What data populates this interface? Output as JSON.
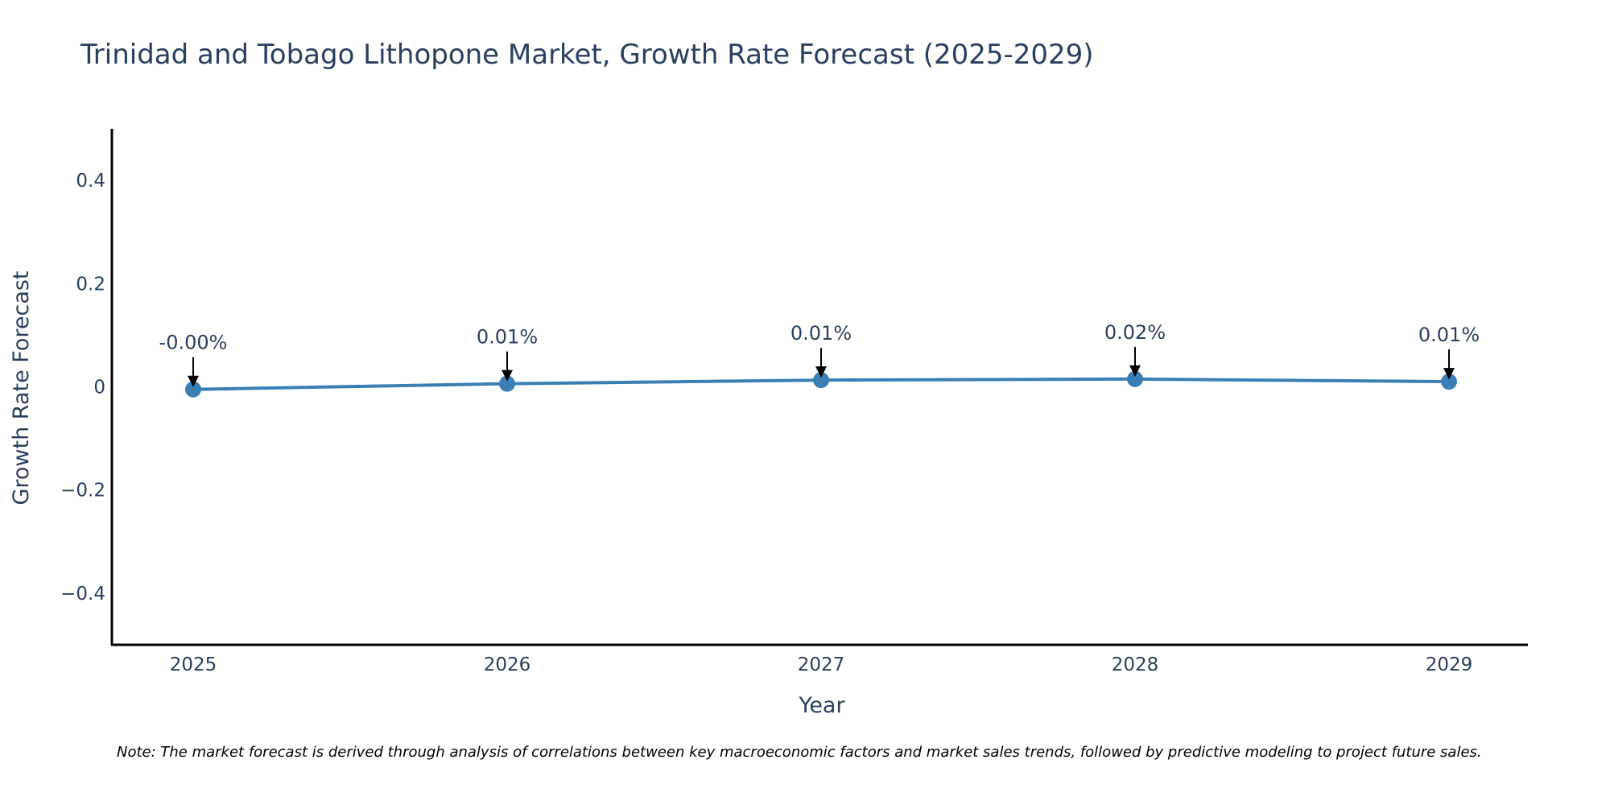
{
  "chart_data": {
    "type": "line",
    "title": "Trinidad and Tobago Lithopone Market, Growth Rate Forecast (2025-2029)",
    "xlabel": "Year",
    "ylabel": "Growth Rate Forecast",
    "categories": [
      "2025",
      "2026",
      "2027",
      "2028",
      "2029"
    ],
    "values": [
      -0.005,
      0.006,
      0.013,
      0.015,
      0.01
    ],
    "data_labels": [
      "-0.00%",
      "0.01%",
      "0.01%",
      "0.02%",
      "0.01%"
    ],
    "ylim": [
      -0.5,
      0.5
    ],
    "y_ticks": [
      -0.4,
      -0.2,
      0,
      0.2,
      0.4
    ],
    "y_tick_labels": [
      "−0.4",
      "−0.2",
      "0",
      "0.2",
      "0.4"
    ],
    "grid": false,
    "legend": "none",
    "line_color": "#3a7fb4",
    "marker_color": "#3a7fb4",
    "axis_color": "#000000",
    "note": "Note: The market forecast is derived through analysis of correlations between key macroeconomic factors and market sales trends, followed by predictive modeling to project future sales."
  }
}
